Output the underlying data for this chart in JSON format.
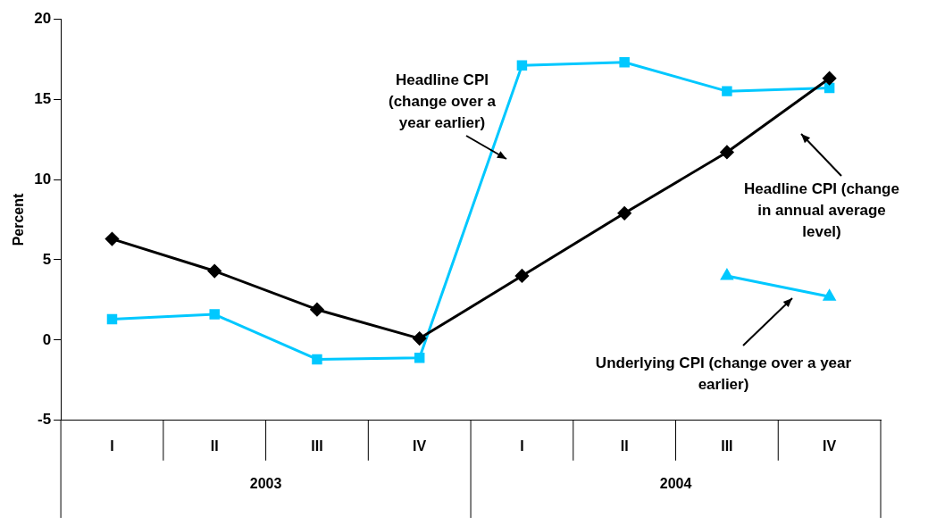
{
  "chart_data": {
    "type": "line",
    "ylabel": "Percent",
    "categories": [
      "I",
      "II",
      "III",
      "IV",
      "I",
      "II",
      "III",
      "IV"
    ],
    "annotations": [
      "2003",
      "2004"
    ],
    "ylim": [
      -5,
      20
    ],
    "yticks": [
      -5,
      0,
      5,
      10,
      15,
      20
    ],
    "grid": false,
    "legend": false,
    "series": [
      {
        "name": "Headline CPI (change in annual average level)",
        "color": "#000000",
        "marker": "diamond",
        "values": [
          6.3,
          4.3,
          1.9,
          0.1,
          4.0,
          7.9,
          11.7,
          16.3
        ]
      },
      {
        "name": "Headline CPI (change over a year earlier)",
        "color": "#00c8ff",
        "marker": "square",
        "values": [
          1.3,
          1.6,
          -1.2,
          -1.1,
          17.1,
          17.3,
          15.5,
          15.7
        ]
      },
      {
        "name": "Underlying CPI (change over a year earlier)",
        "color": "#00c8ff",
        "marker": "triangle",
        "values": [
          null,
          null,
          null,
          null,
          null,
          null,
          4.0,
          2.7
        ]
      }
    ]
  }
}
